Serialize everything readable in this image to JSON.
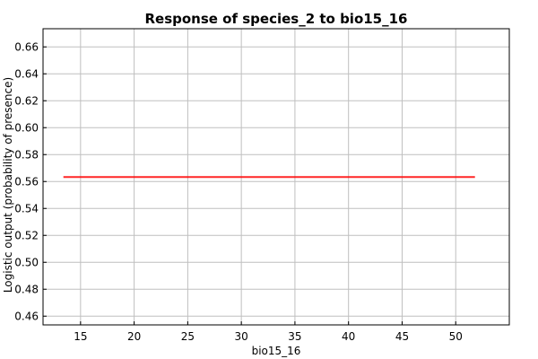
{
  "chart_data": {
    "type": "line",
    "title": "Response of species_2 to bio15_16",
    "xlabel": "bio15_16",
    "ylabel": "Logistic output (probability of presence)",
    "xlim": [
      11.5,
      55.0
    ],
    "ylim": [
      0.4535,
      0.6735
    ],
    "xticks": [
      15,
      20,
      25,
      30,
      35,
      40,
      45,
      50
    ],
    "yticks": [
      0.46,
      0.48,
      0.5,
      0.52,
      0.54,
      0.56,
      0.58,
      0.6,
      0.62,
      0.64,
      0.66
    ],
    "grid": true,
    "series": [
      {
        "color": "#ff0000",
        "x": [
          13.4,
          51.8
        ],
        "y": [
          0.5633,
          0.5633
        ]
      }
    ]
  }
}
